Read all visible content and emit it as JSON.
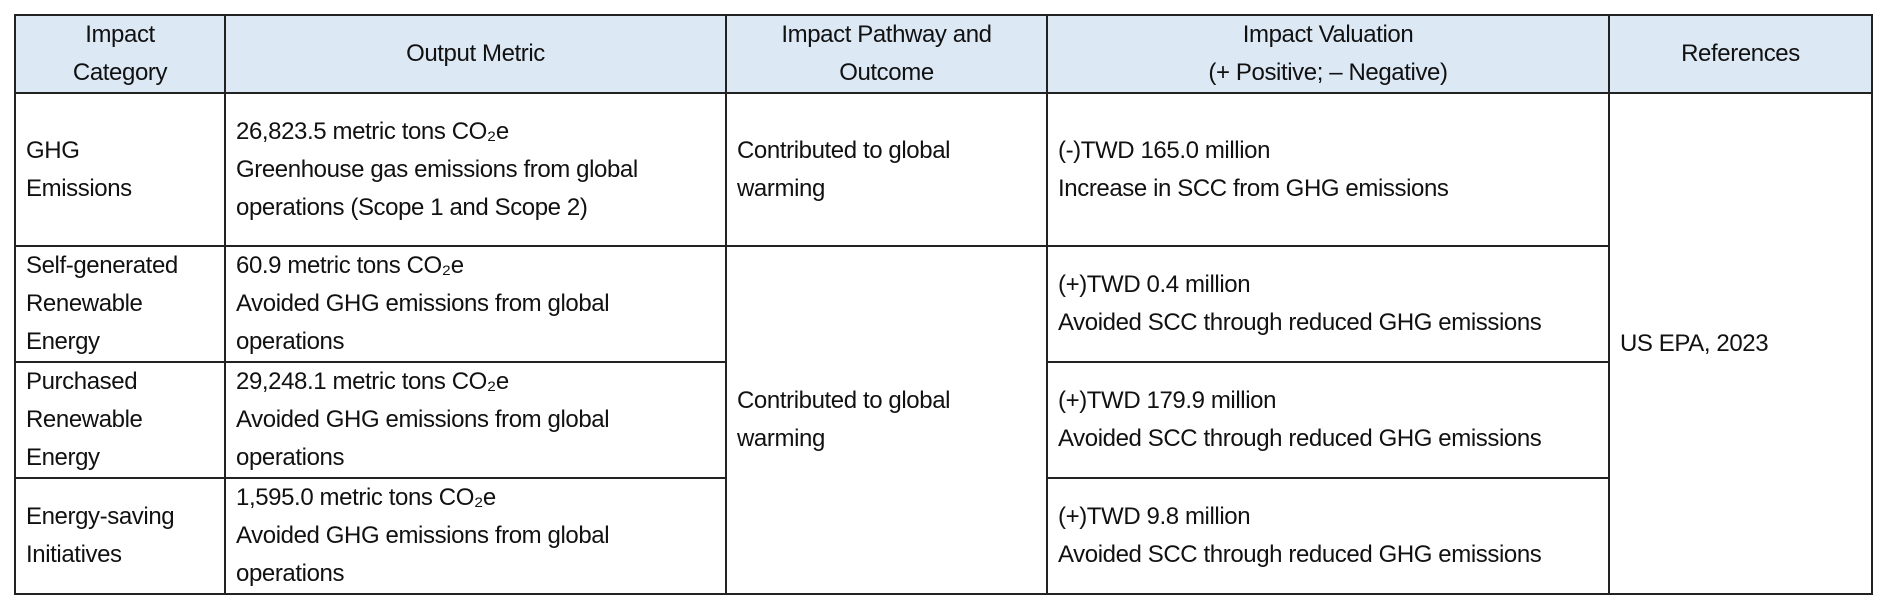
{
  "headers": {
    "category": [
      "Impact",
      "Category"
    ],
    "metric": "Output Metric",
    "pathway": [
      "Impact Pathway and",
      "Outcome"
    ],
    "valuation": [
      "Impact Valuation",
      "(+ Positive; – Negative)"
    ],
    "references": "References"
  },
  "rows": [
    {
      "category": [
        "GHG",
        "Emissions"
      ],
      "metric_value": "26,823.5 metric tons CO₂e",
      "metric_desc": "Greenhouse gas emissions from global operations (Scope 1 and Scope 2)",
      "valuation_value": "(-)TWD 165.0 million",
      "valuation_desc": "Increase in SCC from GHG emissions"
    },
    {
      "category": [
        "Self-generated",
        "Renewable",
        "Energy"
      ],
      "metric_value": "60.9 metric tons CO₂e",
      "metric_desc": "Avoided GHG emissions from global operations",
      "valuation_value": "(+)TWD 0.4 million",
      "valuation_desc": "Avoided SCC through reduced GHG emissions"
    },
    {
      "category": [
        "Purchased",
        "Renewable",
        "Energy"
      ],
      "metric_value": "29,248.1 metric tons CO₂e",
      "metric_desc": "Avoided GHG emissions from global operations",
      "valuation_value": "(+)TWD 179.9 million",
      "valuation_desc": "Avoided SCC through reduced GHG emissions"
    },
    {
      "category": [
        "Energy-saving",
        "Initiatives"
      ],
      "metric_value": "1,595.0 metric tons CO₂e",
      "metric_desc": "Avoided GHG emissions from global operations",
      "valuation_value": "(+)TWD 9.8 million",
      "valuation_desc": "Avoided SCC through reduced GHG emissions"
    }
  ],
  "pathway_1": "Contributed to global warming",
  "pathway_2": "Contributed to global warming",
  "reference": "US EPA, 2023",
  "colors": {
    "header_bg": "#dde8f5",
    "border": "#222222"
  }
}
